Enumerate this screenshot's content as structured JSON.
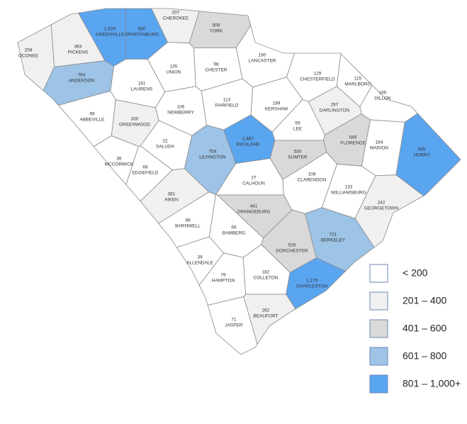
{
  "counties": [
    {
      "name": "OCONEE",
      "value": 208,
      "color": "#f0f0f0"
    },
    {
      "name": "PICKENS",
      "value": 363,
      "color": "#f0f0f0"
    },
    {
      "name": "GREENVILLE",
      "value": 1529,
      "value_label": "1,529",
      "color": "#5aa5f0"
    },
    {
      "name": "SPARTANBURG",
      "value": 830,
      "color": "#5aa5f0"
    },
    {
      "name": "CHEROKEE",
      "value": 207,
      "color": "#f0f0f0"
    },
    {
      "name": "YORK",
      "value": 509,
      "color": "#d9d9d9"
    },
    {
      "name": "ANDERSON",
      "value": 764,
      "color": "#9dc3e6"
    },
    {
      "name": "LAURENS",
      "value": 181,
      "color": "#ffffff"
    },
    {
      "name": "UNION",
      "value": 135,
      "color": "#ffffff"
    },
    {
      "name": "CHESTER",
      "value": 98,
      "color": "#ffffff"
    },
    {
      "name": "LANCASTER",
      "value": 190,
      "color": "#ffffff"
    },
    {
      "name": "CHESTERFIELD",
      "value": 129,
      "color": "#ffffff"
    },
    {
      "name": "MARLBORO",
      "value": 115,
      "color": "#ffffff"
    },
    {
      "name": "DILLON",
      "value": 185,
      "color": "#ffffff"
    },
    {
      "name": "ABBEVILLE",
      "value": 99,
      "color": "#ffffff"
    },
    {
      "name": "GREENWOOD",
      "value": 330,
      "color": "#f0f0f0"
    },
    {
      "name": "NEWBERRY",
      "value": 106,
      "color": "#ffffff"
    },
    {
      "name": "FAIRFIELD",
      "value": 113,
      "color": "#ffffff"
    },
    {
      "name": "KERSHAW",
      "value": 199,
      "color": "#ffffff"
    },
    {
      "name": "DARLINGTON",
      "value": 297,
      "color": "#f0f0f0"
    },
    {
      "name": "LEE",
      "value": 59,
      "color": "#ffffff"
    },
    {
      "name": "FLORENCE",
      "value": 549,
      "color": "#d9d9d9"
    },
    {
      "name": "MARION",
      "value": 184,
      "color": "#ffffff"
    },
    {
      "name": "HORRY",
      "value": 935,
      "color": "#5aa5f0"
    },
    {
      "name": "SALUDA",
      "value": 22,
      "color": "#ffffff"
    },
    {
      "name": "LEXINGTON",
      "value": 754,
      "color": "#9dc3e6"
    },
    {
      "name": "RICHLAND",
      "value": 1467,
      "value_label": "1,467",
      "color": "#5aa5f0"
    },
    {
      "name": "SUMTER",
      "value": 530,
      "color": "#d9d9d9"
    },
    {
      "name": "MCCORMICK",
      "value": 36,
      "color": "#ffffff"
    },
    {
      "name": "EDGEFIELD",
      "value": 68,
      "color": "#ffffff"
    },
    {
      "name": "CALHOUN",
      "value": 27,
      "color": "#ffffff"
    },
    {
      "name": "CLARENDON",
      "value": 108,
      "color": "#ffffff"
    },
    {
      "name": "WILLIAMSBURG",
      "value": 133,
      "color": "#ffffff"
    },
    {
      "name": "GEORGETOWN",
      "value": 242,
      "color": "#f0f0f0"
    },
    {
      "name": "AIKEN",
      "value": 361,
      "color": "#f0f0f0"
    },
    {
      "name": "ORANGEBURG",
      "value": 441,
      "color": "#d9d9d9"
    },
    {
      "name": "BARNWELL",
      "value": 88,
      "color": "#ffffff"
    },
    {
      "name": "BAMBERG",
      "value": 69,
      "color": "#ffffff"
    },
    {
      "name": "BERKELEY",
      "value": 721,
      "color": "#9dc3e6"
    },
    {
      "name": "DORCHESTER",
      "value": 528,
      "color": "#d9d9d9"
    },
    {
      "name": "ALLENDALE",
      "value": 39,
      "color": "#ffffff"
    },
    {
      "name": "HAMPTON",
      "value": 78,
      "color": "#ffffff"
    },
    {
      "name": "COLLETON",
      "value": 182,
      "color": "#ffffff"
    },
    {
      "name": "CHARLESTON",
      "value": 1179,
      "value_label": "1,179",
      "color": "#5aa5f0"
    },
    {
      "name": "JASPER",
      "value": 71,
      "color": "#ffffff"
    },
    {
      "name": "BEAUFORT",
      "value": 262,
      "color": "#f0f0f0"
    }
  ],
  "legend": [
    {
      "label": "< 200",
      "color": "#ffffff"
    },
    {
      "label": "201 – 400",
      "color": "#f0f0f0"
    },
    {
      "label": "401 – 600",
      "color": "#d9d9d9"
    },
    {
      "label": "601 – 800",
      "color": "#9dc3e6"
    },
    {
      "label": "801 – 1,000+",
      "color": "#5aa5f0"
    }
  ]
}
